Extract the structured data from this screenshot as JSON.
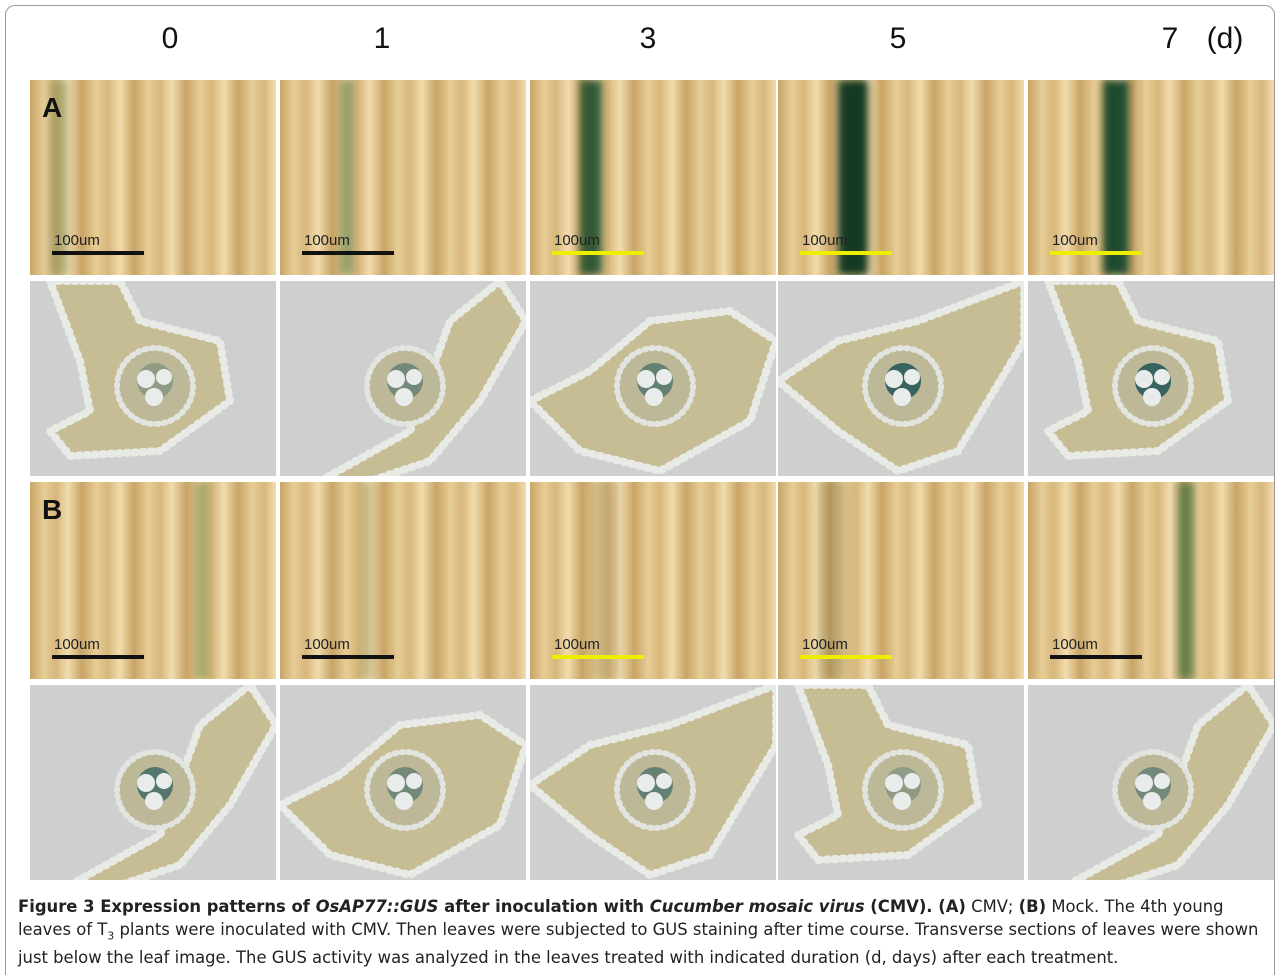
{
  "header": {
    "columns": [
      "0",
      "1",
      "3",
      "5",
      "7"
    ],
    "unit": "(d)"
  },
  "panels": {
    "A": {
      "label": "A",
      "scale_bars": [
        "100um",
        "100um",
        "100um",
        "100um",
        "100um"
      ]
    },
    "B": {
      "label": "B",
      "scale_bars": [
        "100um",
        "100um",
        "100um",
        "100um",
        "100um"
      ]
    }
  },
  "caption": {
    "segments": [
      "Figure 3 Expression patterns of ",
      "OsAP77::GUS",
      " after inoculation with ",
      "Cucumber mosaic virus",
      " (CMV). (A)",
      " CMV; ",
      "(B)",
      " Mock. The 4th young leaves of T",
      "3",
      " plants were inoculated with CMV. Then leaves were subjected to GUS staining after time course. Transverse sections of leaves were shown just below the leaf image. The GUS activity was analyzed in the leaves treated with indicated duration (d, days) after each treatment."
    ]
  }
}
